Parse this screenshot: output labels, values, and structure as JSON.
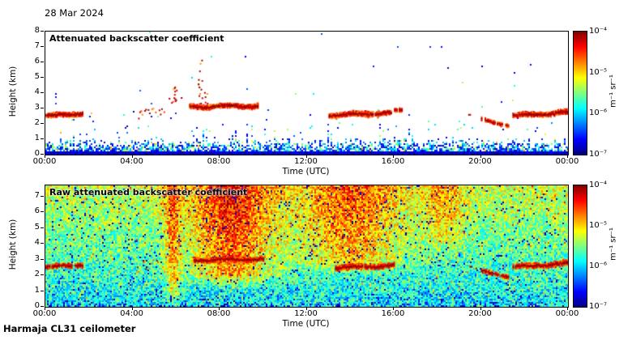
{
  "header": {
    "date": "28 Mar 2024"
  },
  "footer": {
    "instrument": "Harmaja CL31 ceilometer"
  },
  "colorbar": {
    "tick_labels": [
      "10⁻⁴",
      "10⁻⁵",
      "10⁻⁶",
      "10⁻⁷"
    ],
    "unit": "m⁻¹ sr⁻¹",
    "colormap": "jet",
    "stops": [
      [
        0,
        "#000080"
      ],
      [
        0.125,
        "#0000ff"
      ],
      [
        0.375,
        "#00ffff"
      ],
      [
        0.625,
        "#ffff00"
      ],
      [
        0.875,
        "#ff0000"
      ],
      [
        1,
        "#800000"
      ]
    ]
  },
  "chart_data": [
    {
      "type": "heatmap",
      "title": "Attenuated backscatter coefficient",
      "xlabel": "Time (UTC)",
      "ylabel": "Height (km)",
      "x_tick_labels": [
        "00:00",
        "04:00",
        "08:00",
        "12:00",
        "16:00",
        "20:00",
        "00:00"
      ],
      "x_tick_hours": [
        0,
        4,
        8,
        12,
        16,
        20,
        24
      ],
      "x_range_hours": [
        0,
        24
      ],
      "y_ticks": [
        0,
        1,
        2,
        3,
        4,
        5,
        6,
        7,
        8
      ],
      "ylim_km": [
        0,
        8
      ],
      "value_range": [
        "1e-7",
        "1e-4"
      ],
      "value_unit": "m⁻¹ sr⁻¹",
      "background": "#ffffff",
      "noise_profile": {
        "surface_band_km": 0.22,
        "decay_km": 0.85,
        "sparse_top_km": 2.8
      },
      "plumes": [
        {
          "hour": 5.9,
          "h0_km": 3.1,
          "h1_km": 4.6,
          "density": 0.3
        },
        {
          "hour": 7.1,
          "h0_km": 3.3,
          "h1_km": 6.2,
          "density": 0.3
        },
        {
          "hour": 7.35,
          "h0_km": 3.3,
          "h1_km": 4.3,
          "density": 0.25
        }
      ],
      "cloud_layers": [
        {
          "t0_h": 0.0,
          "t1_h": 1.7,
          "h0_km": 2.55,
          "h1_km": 2.7,
          "thickness_km": 0.28,
          "density": 0.95,
          "scatter": false
        },
        {
          "t0_h": 4.2,
          "t1_h": 5.45,
          "h0_km": 2.5,
          "h1_km": 3.0,
          "thickness_km": 0.3,
          "density": 0.5,
          "scatter": true
        },
        {
          "t0_h": 5.55,
          "t1_h": 6.35,
          "h0_km": 3.3,
          "h1_km": 3.6,
          "thickness_km": 0.45,
          "density": 0.3,
          "scatter": true
        },
        {
          "t0_h": 6.6,
          "t1_h": 9.75,
          "h0_km": 3.15,
          "h1_km": 3.2,
          "thickness_km": 0.3,
          "density": 1.0,
          "scatter": false
        },
        {
          "t0_h": 13.0,
          "t1_h": 15.85,
          "h0_km": 2.6,
          "h1_km": 2.75,
          "thickness_km": 0.32,
          "density": 0.97,
          "scatter": false
        },
        {
          "t0_h": 15.95,
          "t1_h": 16.35,
          "h0_km": 2.85,
          "h1_km": 2.9,
          "thickness_km": 0.25,
          "density": 0.8,
          "scatter": false
        },
        {
          "t0_h": 19.25,
          "t1_h": 19.8,
          "h0_km": 2.45,
          "h1_km": 2.5,
          "thickness_km": 0.2,
          "density": 0.5,
          "scatter": true
        },
        {
          "t0_h": 20.0,
          "t1_h": 21.25,
          "h0_km": 2.3,
          "h1_km": 1.95,
          "thickness_km": 0.22,
          "density": 0.85,
          "scatter": false
        },
        {
          "t0_h": 21.45,
          "t1_h": 24.0,
          "h0_km": 2.55,
          "h1_km": 2.8,
          "thickness_km": 0.3,
          "density": 0.95,
          "scatter": false
        }
      ]
    },
    {
      "type": "heatmap",
      "title": "Raw attenuated backscatter coefficient",
      "xlabel": "Time (UTC)",
      "ylabel": "Height (km)",
      "x_tick_labels": [
        "00:00",
        "04:00",
        "08:00",
        "12:00",
        "16:00",
        "20:00",
        "00:00"
      ],
      "x_tick_hours": [
        0,
        4,
        8,
        12,
        16,
        20,
        24
      ],
      "x_range_hours": [
        0,
        24
      ],
      "y_ticks": [
        0,
        1,
        2,
        3,
        4,
        5,
        6,
        7
      ],
      "ylim_km": [
        0,
        7.7
      ],
      "value_range": [
        "1e-7",
        "1e-4"
      ],
      "value_unit": "m⁻¹ sr⁻¹",
      "sun_noise_bands": [
        {
          "center_h": 5.8,
          "sigma_h": 0.25,
          "amp": 0.22,
          "hmin_km": 0
        },
        {
          "center_h": 8.5,
          "sigma_h": 1.3,
          "amp": 0.3,
          "hmin_km": 1.2
        },
        {
          "center_h": 14.0,
          "sigma_h": 1.6,
          "amp": 0.22,
          "hmin_km": 2.0
        },
        {
          "center_h": 18.3,
          "sigma_h": 0.6,
          "amp": 0.14,
          "hmin_km": 3.5
        }
      ],
      "cloud_layers": [
        {
          "t0_h": 0.0,
          "t1_h": 1.7,
          "h0_km": 2.55,
          "h1_km": 2.7,
          "thickness_km": 0.28,
          "density": 0.95,
          "scatter": false
        },
        {
          "t0_h": 4.2,
          "t1_h": 5.45,
          "h0_km": 2.5,
          "h1_km": 3.0,
          "thickness_km": 0.3,
          "density": 0.45,
          "scatter": true
        },
        {
          "t0_h": 6.8,
          "t1_h": 10.0,
          "h0_km": 3.0,
          "h1_km": 3.05,
          "thickness_km": 0.3,
          "density": 1.0,
          "scatter": false
        },
        {
          "t0_h": 13.3,
          "t1_h": 16.0,
          "h0_km": 2.5,
          "h1_km": 2.65,
          "thickness_km": 0.3,
          "density": 0.95,
          "scatter": false
        },
        {
          "t0_h": 19.25,
          "t1_h": 19.8,
          "h0_km": 2.45,
          "h1_km": 2.5,
          "thickness_km": 0.2,
          "density": 0.5,
          "scatter": true
        },
        {
          "t0_h": 20.0,
          "t1_h": 21.25,
          "h0_km": 2.3,
          "h1_km": 1.95,
          "thickness_km": 0.22,
          "density": 0.85,
          "scatter": false
        },
        {
          "t0_h": 21.45,
          "t1_h": 24.0,
          "h0_km": 2.55,
          "h1_km": 2.8,
          "thickness_km": 0.3,
          "density": 0.95,
          "scatter": false
        }
      ]
    }
  ]
}
